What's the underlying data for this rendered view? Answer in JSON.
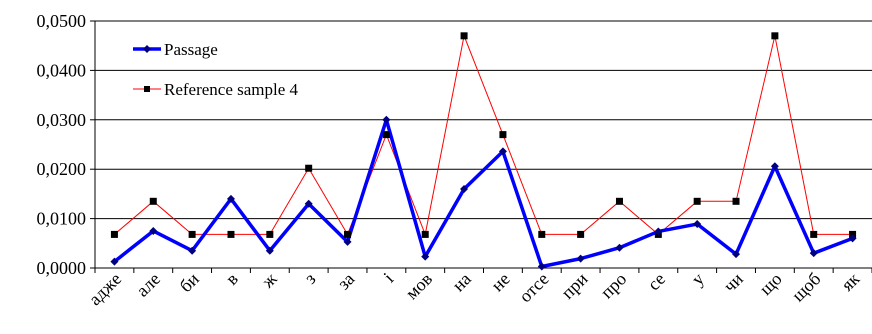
{
  "chart_data": {
    "type": "line",
    "categories": [
      "адже",
      "але",
      "би",
      "в",
      "ж",
      "з",
      "за",
      "і",
      "мов",
      "на",
      "не",
      "отсе",
      "при",
      "про",
      "се",
      "у",
      "чи",
      "що",
      "щоб",
      "як"
    ],
    "series": [
      {
        "name": "Passage",
        "color": "#0000ff",
        "marker": "diamond",
        "values": [
          0.0013,
          0.0075,
          0.0035,
          0.014,
          0.0035,
          0.013,
          0.0053,
          0.03,
          0.0023,
          0.016,
          0.0236,
          0.0003,
          0.0019,
          0.0041,
          0.0074,
          0.0089,
          0.0028,
          0.0206,
          0.003,
          0.006
        ]
      },
      {
        "name": "Reference sample 4",
        "color": "#ff0000",
        "marker": "square",
        "values": [
          0.0068,
          0.0135,
          0.0068,
          0.0068,
          0.0068,
          0.0202,
          0.0068,
          0.027,
          0.0068,
          0.047,
          0.027,
          0.0068,
          0.0068,
          0.0135,
          0.0068,
          0.0135,
          0.0135,
          0.047,
          0.0068,
          0.0068
        ]
      }
    ],
    "y_ticks": [
      "0,0000",
      "0,0100",
      "0,0200",
      "0,0300",
      "0,0400",
      "0,0500"
    ],
    "ylim": [
      0,
      0.05
    ],
    "grid": true,
    "legend_position": "top-left"
  }
}
